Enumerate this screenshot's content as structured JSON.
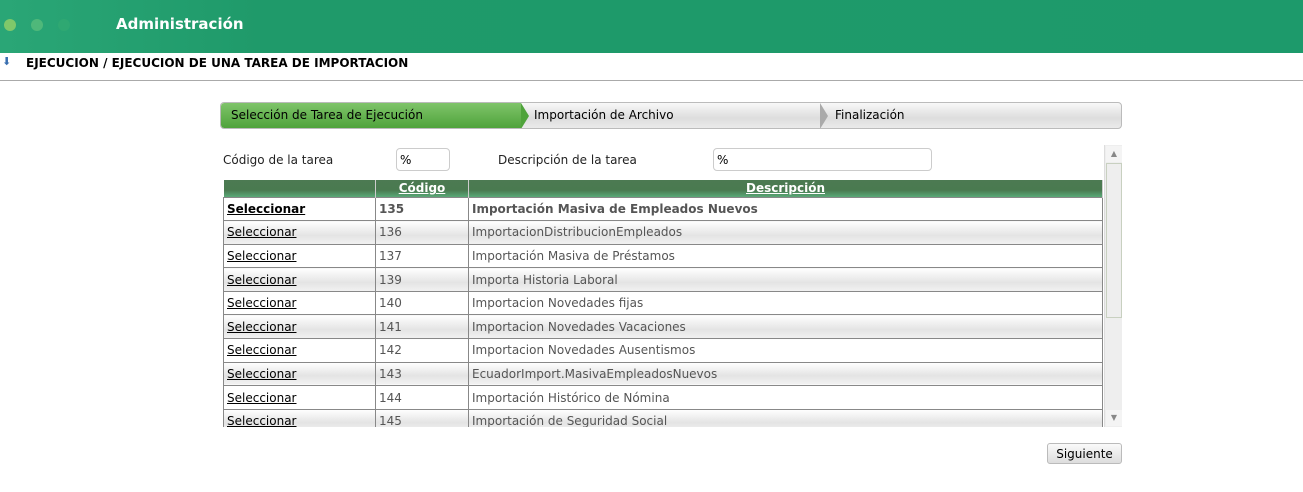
{
  "header": {
    "title": "Administración"
  },
  "breadcrumb": "EJECUCION / EJECUCION DE UNA TAREA DE IMPORTACION",
  "wizard": {
    "steps": [
      "Selección de Tarea de Ejecución",
      "Importación de Archivo",
      "Finalización"
    ]
  },
  "filters": {
    "code_label": "Código de la tarea",
    "code_value": "%",
    "desc_label": "Descripción de la tarea",
    "desc_value": "%"
  },
  "table": {
    "headers": [
      "",
      "Código",
      "Descripción"
    ],
    "select_label": "Seleccionar",
    "rows": [
      {
        "code": "135",
        "desc": "Importación Masiva de Empleados Nuevos"
      },
      {
        "code": "136",
        "desc": "ImportacionDistribucionEmpleados"
      },
      {
        "code": "137",
        "desc": "Importación Masiva de Préstamos"
      },
      {
        "code": "139",
        "desc": "Importa Historia Laboral"
      },
      {
        "code": "140",
        "desc": "Importacion Novedades fijas"
      },
      {
        "code": "141",
        "desc": "Importacion Novedades Vacaciones"
      },
      {
        "code": "142",
        "desc": "Importacion Novedades Ausentismos"
      },
      {
        "code": "143",
        "desc": "EcuadorImport.MasivaEmpleadosNuevos"
      },
      {
        "code": "144",
        "desc": "Importación Histórico de Nómina"
      },
      {
        "code": "145",
        "desc": "Importación de Seguridad Social"
      }
    ]
  },
  "next_button": "Siguiente"
}
